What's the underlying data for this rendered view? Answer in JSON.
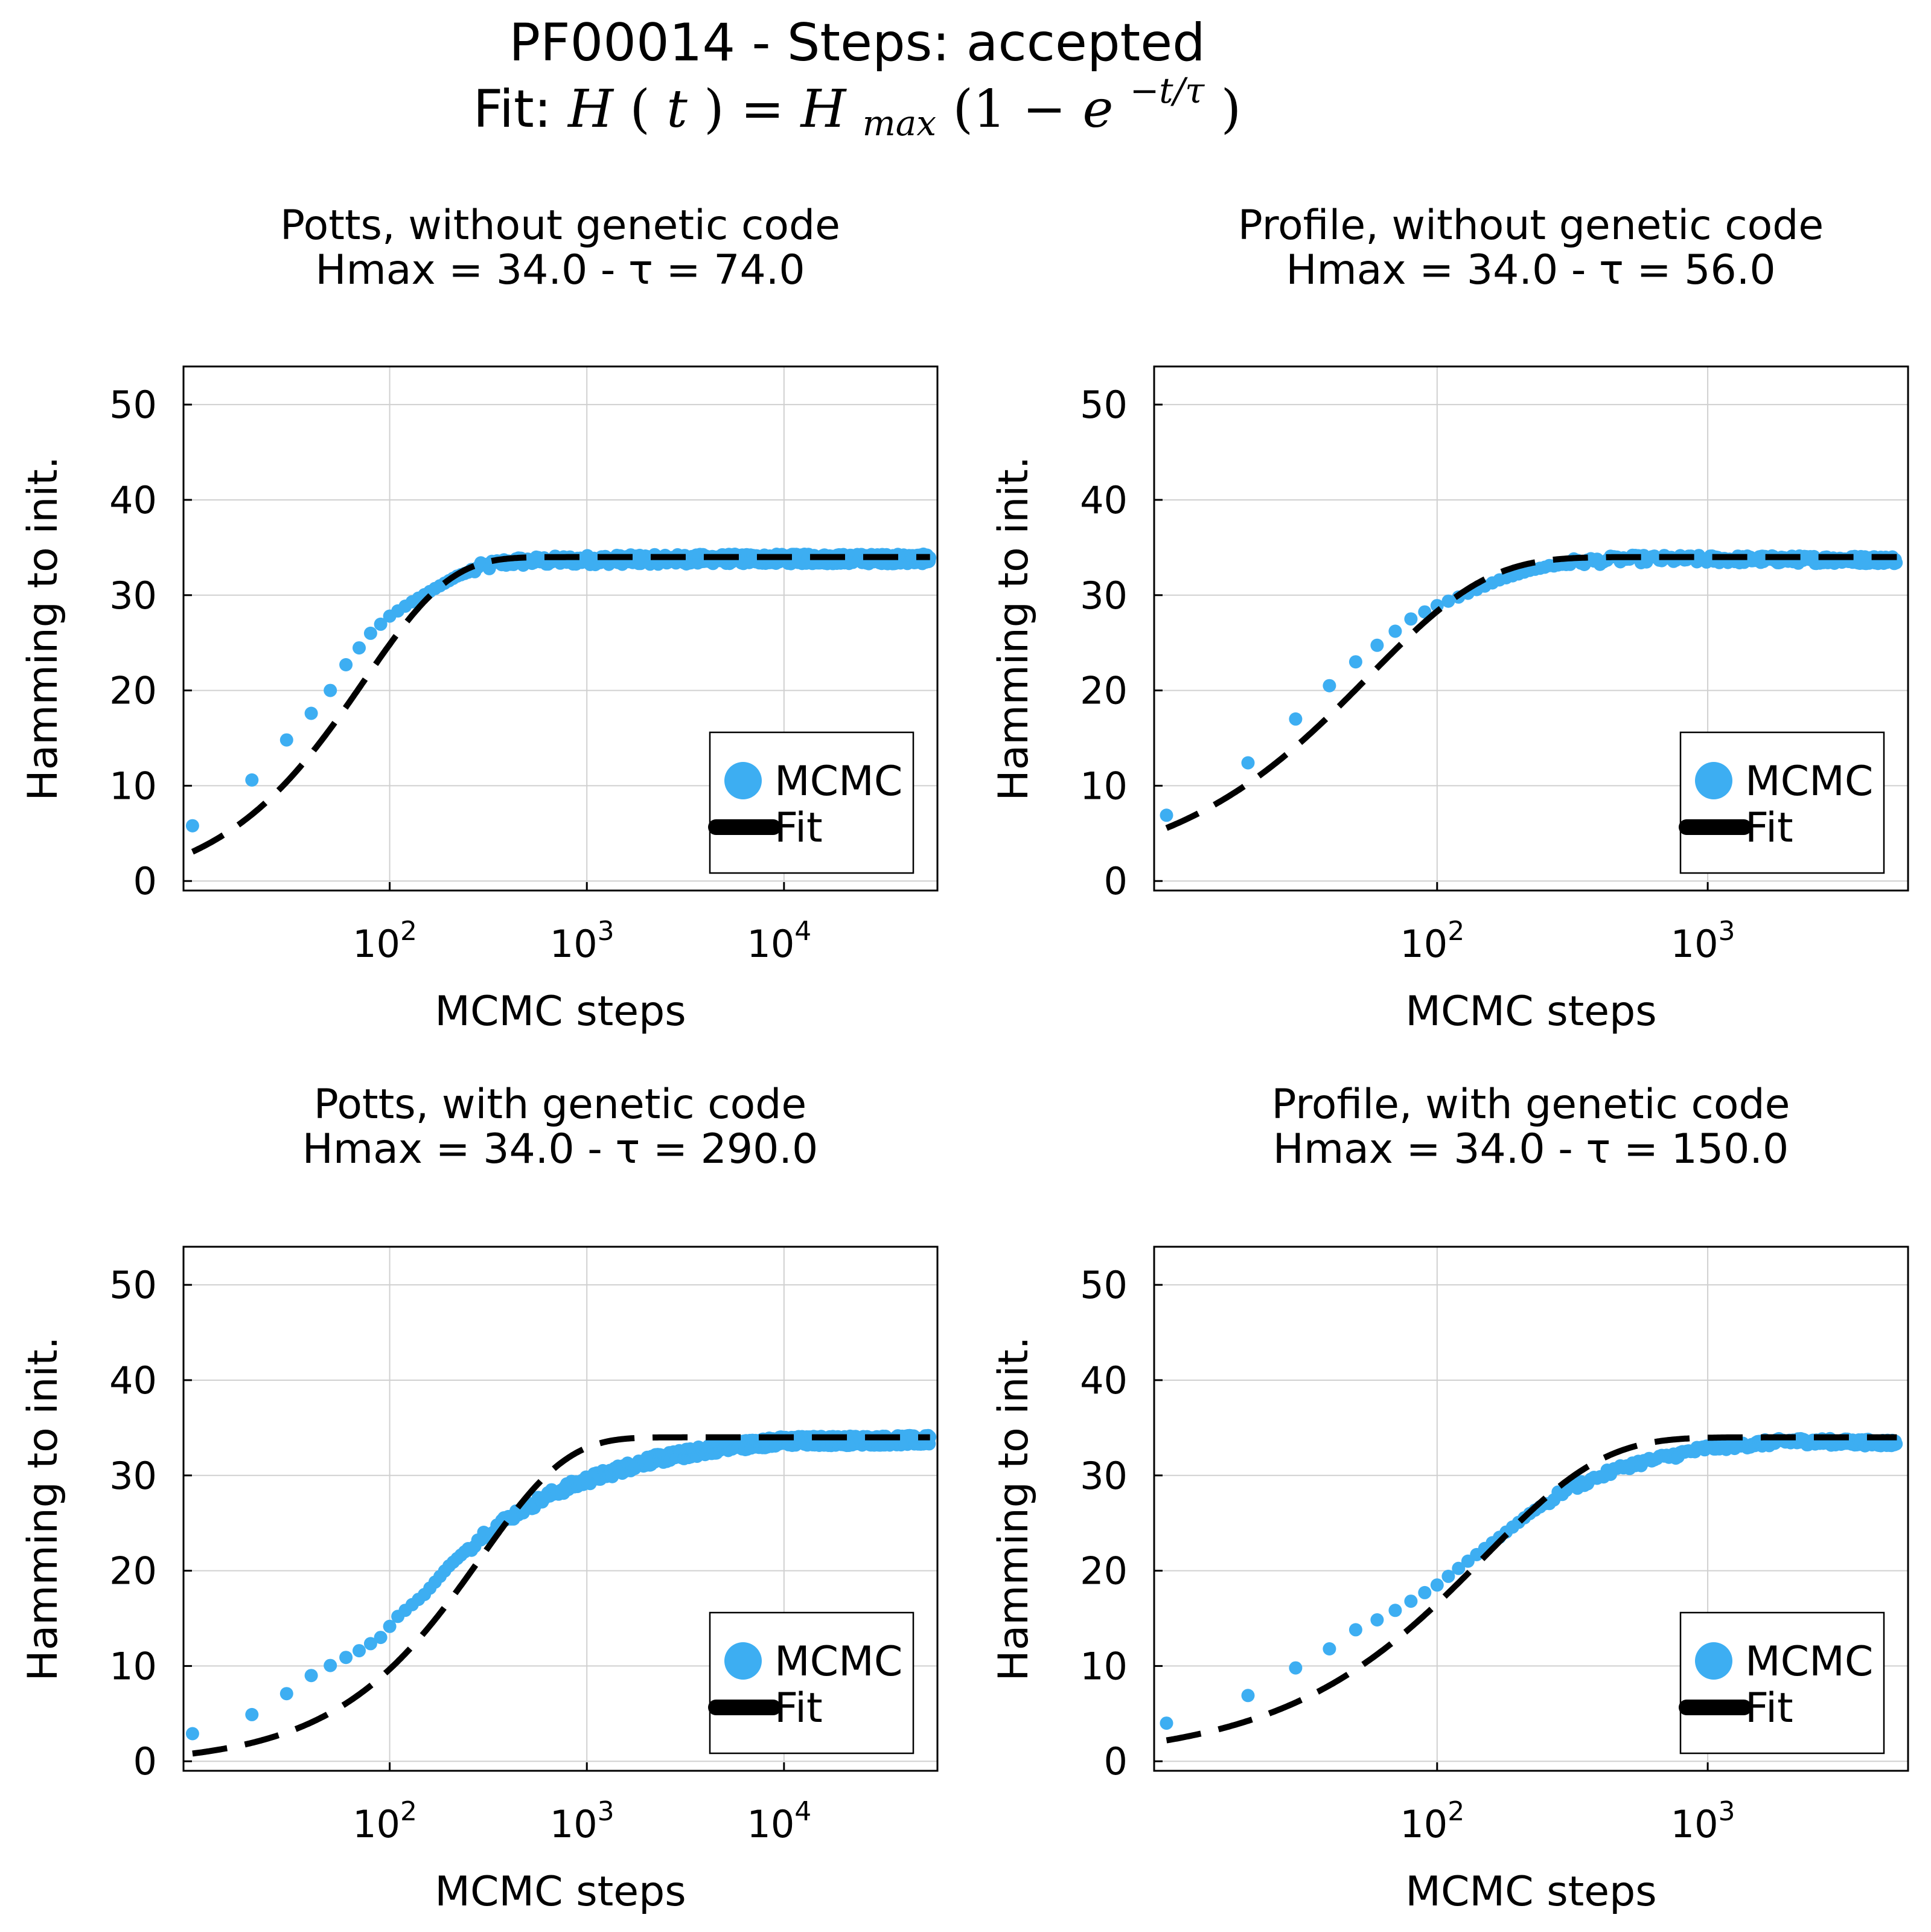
{
  "figure": {
    "title": "PF00014 - Steps: accepted",
    "fit_prefix": "Fit: ",
    "fit_formula": "H(t) = H_max(1 − e^(−t/τ))",
    "fit_parts": {
      "H": "H",
      "t": "t",
      "Hmax_base": "H",
      "Hmax_sub": "max",
      "e": "e",
      "exponent": "−t/τ"
    }
  },
  "colors": {
    "mcmc": "#3DAEF2",
    "fit": "#000000",
    "grid": "#D0D0D0"
  },
  "chart_data": [
    {
      "type": "scatter",
      "title": "Potts, without genetic code",
      "subtitle": "Hmax = 34.0 - τ = 74.0",
      "xlabel": "MCMC steps",
      "ylabel": "Hamming to init.",
      "xscale": "log",
      "xlim": [
        9,
        60000
      ],
      "ylim": [
        -1,
        54
      ],
      "xticks": [
        {
          "value": 100,
          "base": "10",
          "exp": "2"
        },
        {
          "value": 1000,
          "base": "10",
          "exp": "3"
        },
        {
          "value": 10000,
          "base": "10",
          "exp": "4"
        }
      ],
      "yticks": [
        0,
        10,
        20,
        30,
        40,
        50
      ],
      "legend": {
        "position": "bottom-right",
        "entries": [
          "MCMC",
          "Fit"
        ]
      },
      "grid": true,
      "series": [
        {
          "name": "MCMC",
          "kind": "points",
          "x_start": 10,
          "x_end": 55000,
          "y_start": 5.8,
          "noise": 0.5,
          "anchors": [
            [
              10,
              5.8
            ],
            [
              20,
              10.6
            ],
            [
              30,
              14.8
            ],
            [
              40,
              17.6
            ],
            [
              50,
              20.0
            ],
            [
              60,
              22.7
            ],
            [
              80,
              26.0
            ],
            [
              100,
              27.8
            ],
            [
              130,
              29.3
            ],
            [
              170,
              30.7
            ],
            [
              220,
              32.0
            ],
            [
              300,
              33.0
            ],
            [
              400,
              33.5
            ],
            [
              1000,
              33.7
            ],
            [
              5000,
              33.8
            ],
            [
              55000,
              33.8
            ]
          ]
        },
        {
          "name": "Fit",
          "kind": "fit",
          "Hmax": 34.0,
          "tau": 74.0,
          "t0": 3,
          "x_start": 10,
          "x_end": 55000
        }
      ]
    },
    {
      "type": "scatter",
      "title": "Profile, without genetic code",
      "subtitle": "Hmax = 34.0 - τ = 56.0",
      "xlabel": "MCMC steps",
      "ylabel": "Hamming to init.",
      "xscale": "log",
      "xlim": [
        9,
        5500
      ],
      "ylim": [
        -1,
        54
      ],
      "xticks": [
        {
          "value": 100,
          "base": "10",
          "exp": "2"
        },
        {
          "value": 1000,
          "base": "10",
          "exp": "3"
        }
      ],
      "yticks": [
        0,
        10,
        20,
        30,
        40,
        50
      ],
      "legend": {
        "position": "bottom-right",
        "entries": [
          "MCMC",
          "Fit"
        ]
      },
      "grid": true,
      "series": [
        {
          "name": "MCMC",
          "kind": "points",
          "x_start": 10,
          "x_end": 5000,
          "y_start": 6.9,
          "noise": 0.4,
          "anchors": [
            [
              10,
              6.9
            ],
            [
              20,
              12.4
            ],
            [
              30,
              17.0
            ],
            [
              40,
              20.5
            ],
            [
              50,
              23.0
            ],
            [
              65,
              25.5
            ],
            [
              80,
              27.5
            ],
            [
              100,
              28.9
            ],
            [
              130,
              30.2
            ],
            [
              170,
              31.6
            ],
            [
              220,
              32.6
            ],
            [
              300,
              33.4
            ],
            [
              500,
              33.8
            ],
            [
              5000,
              33.7
            ]
          ]
        },
        {
          "name": "Fit",
          "kind": "fit",
          "Hmax": 34.0,
          "tau": 56.0,
          "t0": 0,
          "x_start": 10,
          "x_end": 5000
        }
      ]
    },
    {
      "type": "scatter",
      "title": "Potts, with genetic code",
      "subtitle": "Hmax = 34.0 - τ = 290.0",
      "xlabel": "MCMC steps",
      "ylabel": "Hamming to init.",
      "xscale": "log",
      "xlim": [
        9,
        60000
      ],
      "ylim": [
        -1,
        54
      ],
      "xticks": [
        {
          "value": 100,
          "base": "10",
          "exp": "2"
        },
        {
          "value": 1000,
          "base": "10",
          "exp": "3"
        },
        {
          "value": 10000,
          "base": "10",
          "exp": "4"
        }
      ],
      "yticks": [
        0,
        10,
        20,
        30,
        40,
        50
      ],
      "legend": {
        "position": "bottom-right",
        "entries": [
          "MCMC",
          "Fit"
        ]
      },
      "grid": true,
      "series": [
        {
          "name": "MCMC",
          "kind": "points",
          "x_start": 10,
          "x_end": 55000,
          "y_start": 2.9,
          "noise": 0.5,
          "anchors": [
            [
              10,
              2.9
            ],
            [
              20,
              4.9
            ],
            [
              30,
              7.1
            ],
            [
              40,
              9.0
            ],
            [
              55,
              10.5
            ],
            [
              70,
              11.6
            ],
            [
              90,
              13.0
            ],
            [
              110,
              15.2
            ],
            [
              150,
              17.5
            ],
            [
              200,
              20.5
            ],
            [
              300,
              23.8
            ],
            [
              450,
              26.2
            ],
            [
              700,
              28.3
            ],
            [
              1000,
              29.5
            ],
            [
              2000,
              31.5
            ],
            [
              5000,
              33.0
            ],
            [
              10000,
              33.6
            ],
            [
              55000,
              33.7
            ]
          ]
        },
        {
          "name": "Fit",
          "kind": "fit",
          "Hmax": 34.0,
          "tau": 290.0,
          "t0": 3,
          "x_start": 10,
          "x_end": 55000
        }
      ]
    },
    {
      "type": "scatter",
      "title": "Profile, with genetic code",
      "subtitle": "Hmax = 34.0 - τ = 150.0",
      "xlabel": "MCMC steps",
      "ylabel": "Hamming to init.",
      "xscale": "log",
      "xlim": [
        9,
        5500
      ],
      "ylim": [
        -1,
        54
      ],
      "xticks": [
        {
          "value": 100,
          "base": "10",
          "exp": "2"
        },
        {
          "value": 1000,
          "base": "10",
          "exp": "3"
        }
      ],
      "yticks": [
        0,
        10,
        20,
        30,
        40,
        50
      ],
      "legend": {
        "position": "bottom-right",
        "entries": [
          "MCMC",
          "Fit"
        ]
      },
      "grid": true,
      "series": [
        {
          "name": "MCMC",
          "kind": "points",
          "x_start": 10,
          "x_end": 5000,
          "y_start": 4.0,
          "noise": 0.35,
          "anchors": [
            [
              10,
              4.0
            ],
            [
              20,
              6.9
            ],
            [
              30,
              9.8
            ],
            [
              40,
              11.8
            ],
            [
              50,
              13.8
            ],
            [
              65,
              15.3
            ],
            [
              80,
              16.8
            ],
            [
              100,
              18.5
            ],
            [
              130,
              21.0
            ],
            [
              170,
              23.5
            ],
            [
              220,
              26.0
            ],
            [
              300,
              28.5
            ],
            [
              500,
              31.0
            ],
            [
              1000,
              32.9
            ],
            [
              2000,
              33.6
            ],
            [
              5000,
              33.4
            ]
          ]
        },
        {
          "name": "Fit",
          "kind": "fit",
          "Hmax": 34.0,
          "tau": 150.0,
          "t0": 0,
          "x_start": 10,
          "x_end": 5000
        }
      ]
    }
  ]
}
